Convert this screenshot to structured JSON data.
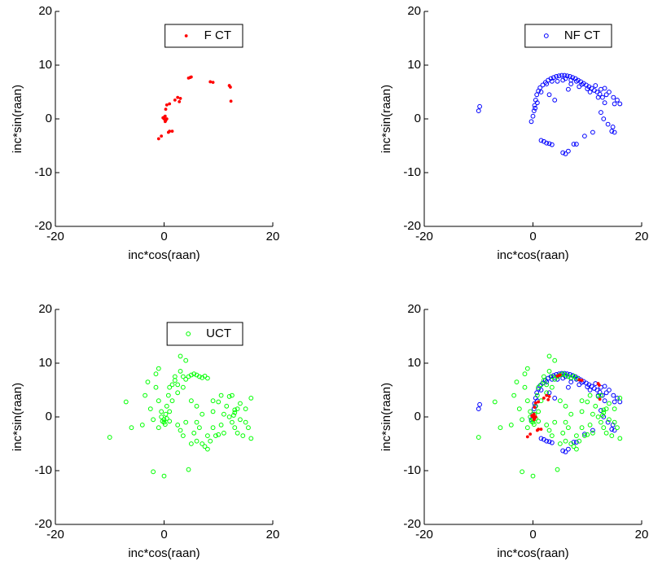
{
  "chart_data": [
    {
      "type": "scatter",
      "xlabel": "inc*cos(raan)",
      "ylabel": "inc*sin(raan)",
      "xlim": [
        -20,
        20
      ],
      "ylim": [
        -20,
        20
      ],
      "xticks": [
        -20,
        0,
        20
      ],
      "yticks": [
        -20,
        -10,
        0,
        10,
        20
      ],
      "legend": "upper right",
      "series": [
        {
          "name": "F CT",
          "color": "#ff0000",
          "marker": ".",
          "x": [
            -1,
            -0.5,
            0,
            0.2,
            0.3,
            0,
            0.5,
            0.3,
            0.5,
            1,
            1,
            1.5,
            0.8,
            2,
            2.5,
            2.8,
            3,
            4.5,
            5,
            4.8,
            8.5,
            9,
            12,
            12.2,
            12.3,
            0.2,
            -0.2
          ],
          "values": [
            -3.7,
            -3.2,
            0,
            0.5,
            -0.3,
            0.3,
            0,
            1.8,
            2.6,
            2.8,
            -2.3,
            -2.3,
            -2.5,
            3.5,
            4,
            3.2,
            3.8,
            7.6,
            7.8,
            7.7,
            6.9,
            6.8,
            6.2,
            5.9,
            3.3,
            -0.5,
            0.2
          ]
        }
      ]
    },
    {
      "type": "scatter",
      "xlabel": "inc*cos(raan)",
      "ylabel": "inc*sin(raan)",
      "xlim": [
        -20,
        20
      ],
      "ylim": [
        -20,
        20
      ],
      "xticks": [
        -20,
        0,
        20
      ],
      "yticks": [
        -20,
        -10,
        0,
        10,
        20
      ],
      "legend": "upper right",
      "series": [
        {
          "name": "NF CT",
          "color": "#0000ff",
          "marker": "o",
          "x": [
            -10,
            -9.8,
            -0.3,
            0,
            0.2,
            0.3,
            0.5,
            0.7,
            1,
            1.3,
            1.8,
            2.3,
            2.8,
            3.3,
            3.8,
            4.3,
            4.8,
            5.3,
            5.8,
            6.3,
            6.8,
            7.3,
            7.8,
            8.3,
            8.8,
            9.3,
            9.8,
            10.3,
            10.8,
            11.3,
            11.8,
            12.3,
            12.8,
            13.5,
            14,
            13.2,
            12.5,
            13,
            13.8,
            14.5,
            15,
            14.7,
            16,
            15.5,
            11,
            9.5,
            8,
            7.5,
            6.5,
            6,
            5.5,
            3.5,
            2.5,
            2,
            1.5,
            3,
            4.5,
            5.5,
            6,
            7,
            8,
            9,
            10,
            2.5,
            3.5,
            1.5,
            0.8,
            0.4,
            6.5,
            3,
            12,
            12.5,
            13.2,
            14.8,
            10.5,
            11.5,
            7,
            4,
            8.5,
            15
          ],
          "values": [
            1.5,
            2.3,
            -0.5,
            0.5,
            1.5,
            2.5,
            3.5,
            4.5,
            5.2,
            5.8,
            6.3,
            6.8,
            7.2,
            7.5,
            7.7,
            7.9,
            8,
            8.1,
            8.1,
            8,
            7.9,
            7.7,
            7.5,
            7.2,
            6.9,
            6.6,
            6.3,
            6,
            5.7,
            5.3,
            5,
            4.6,
            4,
            4.5,
            5,
            3,
            1.2,
            0,
            -1,
            -2.3,
            -2.5,
            -1.5,
            2.8,
            3.5,
            -2.5,
            -3.2,
            -4.7,
            -4.7,
            -6,
            -6.5,
            -6.3,
            -4.8,
            -4.5,
            -4.2,
            -4,
            -4.6,
            7,
            7.2,
            7.5,
            7.2,
            7,
            6.4,
            5.6,
            6.5,
            7,
            5,
            3,
            2,
            5.5,
            4.5,
            4,
            5.5,
            5.7,
            4,
            5,
            6.2,
            6.5,
            3.5,
            6,
            2.8
          ]
        }
      ]
    },
    {
      "type": "scatter",
      "xlabel": "inc*cos(raan)",
      "ylabel": "inc*sin(raan)",
      "xlim": [
        -20,
        20
      ],
      "ylim": [
        -20,
        20
      ],
      "xticks": [
        -20,
        0,
        20
      ],
      "yticks": [
        -20,
        -10,
        0,
        10,
        20
      ],
      "legend": "upper right",
      "series": [
        {
          "name": "UCT",
          "color": "#00ff00",
          "marker": "o",
          "x": [
            -10,
            -7,
            -4,
            -3.5,
            -3,
            -2.5,
            -2,
            -2,
            -1.5,
            -1.5,
            -1,
            -1,
            -0.5,
            -0.5,
            0,
            0,
            0,
            0.3,
            0.5,
            0.5,
            0.8,
            1,
            1,
            1.5,
            1.5,
            2,
            2,
            2.5,
            2.5,
            3,
            3,
            3,
            3.5,
            3.5,
            4,
            4,
            4,
            4.5,
            4.5,
            5,
            5,
            5,
            5.5,
            5.5,
            6,
            6,
            6,
            6.5,
            6.5,
            7,
            7,
            7,
            7.5,
            7.5,
            8,
            8,
            8,
            8.5,
            9,
            9,
            9.5,
            10,
            10,
            10.5,
            10.5,
            11,
            11,
            11.5,
            12,
            12,
            12.5,
            12.5,
            13,
            13,
            13.5,
            13.5,
            14,
            14,
            14.5,
            15,
            15,
            15.5,
            16,
            16,
            13,
            12.8,
            -6,
            -1,
            2.5,
            9,
            6,
            3.5,
            1,
            -0.3,
            0.2
          ],
          "values": [
            -3.8,
            2.8,
            -1.5,
            4,
            6.5,
            1.5,
            -10.2,
            -0.5,
            5.5,
            8,
            3,
            -2,
            0,
            1,
            -11,
            -1,
            -0.5,
            0.5,
            2,
            -0.3,
            4,
            5.5,
            -0.8,
            6,
            3,
            6.8,
            7.5,
            -1.5,
            6,
            8.5,
            11.3,
            -2.5,
            7.5,
            5.5,
            10.5,
            -1,
            7,
            -9.8,
            7.5,
            3,
            7.8,
            -5,
            8,
            -3,
            7.8,
            2,
            -4.5,
            7.5,
            -2,
            -5,
            7.3,
            0.5,
            7.6,
            -5.5,
            7.2,
            -3.5,
            -6,
            -4.5,
            -2,
            1,
            -3.5,
            2.8,
            -3.3,
            -1.5,
            4,
            -3,
            0.5,
            2,
            0,
            3.8,
            -1,
            4,
            0.8,
            -2,
            1.5,
            -3,
            2.5,
            -0.5,
            -3.5,
            -1,
            1.5,
            -2,
            3.5,
            -4,
            1.3,
            0.3,
            -2,
            9,
            4.5,
            3,
            -1,
            -3.5,
            1,
            -0.8,
            -1.4
          ]
        }
      ]
    },
    {
      "type": "scatter",
      "xlabel": "inc*cos(raan)",
      "ylabel": "inc*sin(raan)",
      "xlim": [
        -20,
        20
      ],
      "ylim": [
        -20,
        20
      ],
      "xticks": [
        -20,
        0,
        20
      ],
      "yticks": [
        -20,
        -10,
        0,
        10,
        20
      ],
      "series": [
        {
          "color": "#0000ff",
          "marker": "o",
          "x": [
            -10,
            -9.8,
            -0.3,
            0,
            0.2,
            0.3,
            0.5,
            0.7,
            1,
            1.3,
            1.8,
            2.3,
            2.8,
            3.3,
            3.8,
            4.3,
            4.8,
            5.3,
            5.8,
            6.3,
            6.8,
            7.3,
            7.8,
            8.3,
            8.8,
            9.3,
            9.8,
            10.3,
            10.8,
            11.3,
            11.8,
            12.3,
            12.8,
            13.5,
            14,
            13.2,
            12.5,
            13,
            13.8,
            14.5,
            15,
            14.7,
            16,
            15.5,
            11,
            9.5,
            8,
            7.5,
            6.5,
            6,
            5.5,
            3.5,
            2.5,
            2,
            1.5,
            3,
            4.5,
            5.5,
            6,
            7,
            8,
            9,
            10,
            2.5,
            3.5,
            1.5,
            0.8,
            0.4,
            6.5,
            3,
            12,
            12.5,
            13.2,
            14.8,
            10.5,
            11.5,
            7,
            4,
            8.5,
            15
          ],
          "values": [
            1.5,
            2.3,
            -0.5,
            0.5,
            1.5,
            2.5,
            3.5,
            4.5,
            5.2,
            5.8,
            6.3,
            6.8,
            7.2,
            7.5,
            7.7,
            7.9,
            8,
            8.1,
            8.1,
            8,
            7.9,
            7.7,
            7.5,
            7.2,
            6.9,
            6.6,
            6.3,
            6,
            5.7,
            5.3,
            5,
            4.6,
            4,
            4.5,
            5,
            3,
            1.2,
            0,
            -1,
            -2.3,
            -2.5,
            -1.5,
            2.8,
            3.5,
            -2.5,
            -3.2,
            -4.7,
            -4.7,
            -6,
            -6.5,
            -6.3,
            -4.8,
            -4.5,
            -4.2,
            -4,
            -4.6,
            7,
            7.2,
            7.5,
            7.2,
            7,
            6.4,
            5.6,
            6.5,
            7,
            5,
            3,
            2,
            5.5,
            4.5,
            4,
            5.5,
            5.7,
            4,
            5,
            6.2,
            6.5,
            3.5,
            6,
            2.8
          ]
        },
        {
          "color": "#00ff00",
          "marker": "o",
          "x": [
            -10,
            -7,
            -4,
            -3.5,
            -3,
            -2.5,
            -2,
            -2,
            -1.5,
            -1.5,
            -1,
            -1,
            -0.5,
            -0.5,
            0,
            0,
            0,
            0.3,
            0.5,
            0.5,
            0.8,
            1,
            1,
            1.5,
            1.5,
            2,
            2,
            2.5,
            2.5,
            3,
            3,
            3,
            3.5,
            3.5,
            4,
            4,
            4,
            4.5,
            4.5,
            5,
            5,
            5,
            5.5,
            5.5,
            6,
            6,
            6,
            6.5,
            6.5,
            7,
            7,
            7,
            7.5,
            7.5,
            8,
            8,
            8,
            8.5,
            9,
            9,
            9.5,
            10,
            10,
            10.5,
            10.5,
            11,
            11,
            11.5,
            12,
            12,
            12.5,
            12.5,
            13,
            13,
            13.5,
            13.5,
            14,
            14,
            14.5,
            15,
            15,
            15.5,
            16,
            16,
            13,
            12.8,
            -6,
            -1,
            2.5,
            9,
            6,
            3.5,
            1,
            -0.3,
            0.2
          ],
          "values": [
            -3.8,
            2.8,
            -1.5,
            4,
            6.5,
            1.5,
            -10.2,
            -0.5,
            5.5,
            8,
            3,
            -2,
            0,
            1,
            -11,
            -1,
            -0.5,
            0.5,
            2,
            -0.3,
            4,
            5.5,
            -0.8,
            6,
            3,
            6.8,
            7.5,
            -1.5,
            6,
            8.5,
            11.3,
            -2.5,
            7.5,
            5.5,
            10.5,
            -1,
            7,
            -9.8,
            7.5,
            3,
            7.8,
            -5,
            8,
            -3,
            7.8,
            2,
            -4.5,
            7.5,
            -2,
            -5,
            7.3,
            0.5,
            7.6,
            -5.5,
            7.2,
            -3.5,
            -6,
            -4.5,
            -2,
            1,
            -3.5,
            2.8,
            -3.3,
            -1.5,
            4,
            -3,
            0.5,
            2,
            0,
            3.8,
            -1,
            4,
            0.8,
            -2,
            1.5,
            -3,
            2.5,
            -0.5,
            -3.5,
            -1,
            1.5,
            -2,
            3.5,
            -4,
            1.3,
            0.3,
            -2,
            9,
            4.5,
            3,
            -1,
            -3.5,
            1,
            -0.8,
            -1.4
          ]
        },
        {
          "color": "#ff0000",
          "marker": ".",
          "x": [
            -1,
            -0.5,
            0,
            0.2,
            0.3,
            0,
            0.5,
            0.3,
            0.5,
            1,
            1,
            1.5,
            0.8,
            2,
            2.5,
            2.8,
            3,
            4.5,
            5,
            4.8,
            8.5,
            9,
            12,
            12.2,
            12.3,
            0.2,
            -0.2
          ],
          "values": [
            -3.7,
            -3.2,
            0,
            0.5,
            -0.3,
            0.3,
            0,
            1.8,
            2.6,
            2.8,
            -2.3,
            -2.3,
            -2.5,
            3.5,
            4,
            3.2,
            3.8,
            7.6,
            7.8,
            7.7,
            6.9,
            6.8,
            6.2,
            5.9,
            3.3,
            -0.5,
            0.2
          ]
        }
      ]
    }
  ]
}
